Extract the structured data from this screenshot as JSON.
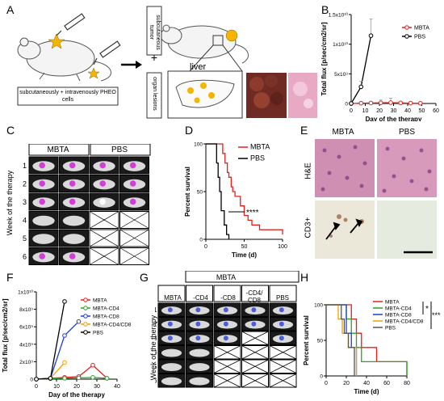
{
  "panel_letters": [
    "A",
    "B",
    "C",
    "D",
    "E",
    "F",
    "G",
    "H"
  ],
  "panelA": {
    "injection_box": "subcutaneously + intravenously PHEO cells",
    "label_subcutaneous": "subcutaneous tumor",
    "label_organ": "organ lesions",
    "plus": "+",
    "liver": "liver"
  },
  "panelC": {
    "header_mbta": "MBTA",
    "header_pbs": "PBS",
    "week_label": "Week of the therapy",
    "weeks": [
      "1",
      "2",
      "3",
      "4",
      "5",
      "6"
    ]
  },
  "panelE": {
    "col_mbta": "MBTA",
    "col_pbs": "PBS",
    "row_he": "H&E",
    "row_cd3": "CD3+"
  },
  "panelG": {
    "header_mbta": "MBTA",
    "groups": [
      "MBTA",
      "-CD4",
      "-CD8",
      "-CD4/ CD8",
      "PBS"
    ],
    "week_label": "Week of the therapy",
    "weeks": [
      "1",
      "2",
      "3",
      "4",
      "5",
      "6"
    ]
  },
  "chart_data": [
    {
      "id": "B",
      "type": "line",
      "ylabel": "Total flux [p/sec/cm2/sr]",
      "xlabel": "Day of the therapy",
      "ylim": [
        0,
        16000000000.0
      ],
      "xlim": [
        0,
        60
      ],
      "yticks": [
        "0",
        "5x10⁹",
        "1x10¹⁰",
        "1.5x10¹⁰"
      ],
      "xticks": [
        "0",
        "10",
        "20",
        "30",
        "40",
        "50",
        "60"
      ],
      "legend_position": "top-right",
      "series": [
        {
          "name": "MBTA",
          "color": "#e0201b",
          "x": [
            0,
            7,
            14,
            21,
            28,
            35,
            42,
            49
          ],
          "y": [
            0,
            50000000.0,
            80000000.0,
            120000000.0,
            150000000.0,
            100000000.0,
            60000000.0,
            40000000.0
          ],
          "err": [
            0,
            0,
            0,
            500000000.0,
            800000000.0,
            200000000.0,
            0,
            0
          ]
        },
        {
          "name": "PBS",
          "color": "#000000",
          "x": [
            0,
            7,
            14
          ],
          "y": [
            0,
            3000000000.0,
            12200000000.0
          ],
          "err": [
            0,
            1000000000.0,
            3000000000.0
          ]
        }
      ]
    },
    {
      "id": "D",
      "type": "line",
      "ylabel": "Percent survival",
      "xlabel": "Time (d)",
      "ylim": [
        0,
        100
      ],
      "xlim": [
        0,
        100
      ],
      "yticks": [
        "0",
        "50",
        "100"
      ],
      "xticks": [
        "0",
        "50",
        "100"
      ],
      "annotation": "****",
      "legend_position": "right",
      "series": [
        {
          "name": "MBTA",
          "color": "#e0201b",
          "x": [
            0,
            20,
            22,
            25,
            28,
            30,
            33,
            35,
            38,
            45,
            50,
            55,
            60,
            70,
            97,
            100
          ],
          "y": [
            100,
            100,
            90,
            80,
            70,
            65,
            55,
            50,
            45,
            35,
            25,
            20,
            15,
            10,
            10,
            5
          ]
        },
        {
          "name": "PBS",
          "color": "#000000",
          "x": [
            0,
            12,
            14,
            16,
            18,
            20,
            24,
            27,
            30
          ],
          "y": [
            100,
            100,
            80,
            65,
            50,
            30,
            15,
            5,
            0
          ]
        }
      ]
    },
    {
      "id": "F",
      "type": "line",
      "ylabel": "Total flux [p/sec/cm2/sr]",
      "xlabel": "Day of the therapy",
      "ylim": [
        0,
        10000000000.0
      ],
      "xlim": [
        0,
        40
      ],
      "yticks": [
        "0",
        "2x10⁹",
        "4x10⁹",
        "6x10⁹",
        "8x10⁹",
        "1x10¹⁰"
      ],
      "xticks": [
        "0",
        "10",
        "20",
        "30",
        "40"
      ],
      "legend_position": "right",
      "series": [
        {
          "name": "MBTA",
          "color": "#e0201b",
          "x": [
            0,
            7,
            14,
            21,
            28,
            35
          ],
          "y": [
            0,
            100000000.0,
            200000000.0,
            300000000.0,
            1600000000.0,
            100000000.0
          ]
        },
        {
          "name": "MBTA-CD4",
          "color": "#2ca02c",
          "x": [
            0,
            7,
            14,
            21,
            28,
            35
          ],
          "y": [
            0,
            50000000.0,
            100000000.0,
            150000000.0,
            200000000.0,
            100000000.0
          ]
        },
        {
          "name": "MBTA-CD8",
          "color": "#1f3fd1",
          "x": [
            0,
            7,
            14,
            21
          ],
          "y": [
            0,
            100000000.0,
            5000000000.0,
            6600000000.0
          ]
        },
        {
          "name": "MBTA-CD4/CD8",
          "color": "#f0a000",
          "x": [
            0,
            7,
            14
          ],
          "y": [
            0,
            100000000.0,
            1900000000.0
          ]
        },
        {
          "name": "PBS",
          "color": "#000000",
          "x": [
            0,
            7,
            14
          ],
          "y": [
            0,
            100000000.0,
            8900000000.0
          ]
        }
      ]
    },
    {
      "id": "H",
      "type": "line",
      "ylabel": "Percent survival",
      "xlabel": "Time (d)",
      "ylim": [
        0,
        100
      ],
      "xlim": [
        0,
        80
      ],
      "yticks": [
        "0",
        "50",
        "100"
      ],
      "xticks": [
        "0",
        "20",
        "40",
        "60",
        "80"
      ],
      "annotations": [
        "*",
        "***"
      ],
      "legend_position": "top-right",
      "series": [
        {
          "name": "MBTA",
          "color": "#e0201b",
          "x": [
            0,
            20,
            25,
            30,
            35,
            45,
            50,
            55,
            75,
            80
          ],
          "y": [
            100,
            100,
            80,
            60,
            40,
            40,
            20,
            20,
            20,
            0
          ]
        },
        {
          "name": "MBTA-CD4",
          "color": "#2ca02c",
          "x": [
            0,
            15,
            20,
            25,
            30,
            35,
            65,
            80
          ],
          "y": [
            100,
            100,
            80,
            60,
            40,
            20,
            20,
            0
          ]
        },
        {
          "name": "MBTA-CD8",
          "color": "#1f3fd1",
          "x": [
            0,
            15,
            20,
            25,
            30
          ],
          "y": [
            100,
            100,
            60,
            40,
            0
          ]
        },
        {
          "name": "MBTA-CD4/CD8",
          "color": "#f0a000",
          "x": [
            0,
            8,
            12,
            16,
            22,
            30
          ],
          "y": [
            100,
            100,
            80,
            60,
            40,
            0
          ]
        },
        {
          "name": "PBS",
          "color": "#555555",
          "x": [
            0,
            10,
            15,
            18,
            22,
            28
          ],
          "y": [
            100,
            100,
            80,
            60,
            40,
            0
          ]
        }
      ]
    }
  ]
}
